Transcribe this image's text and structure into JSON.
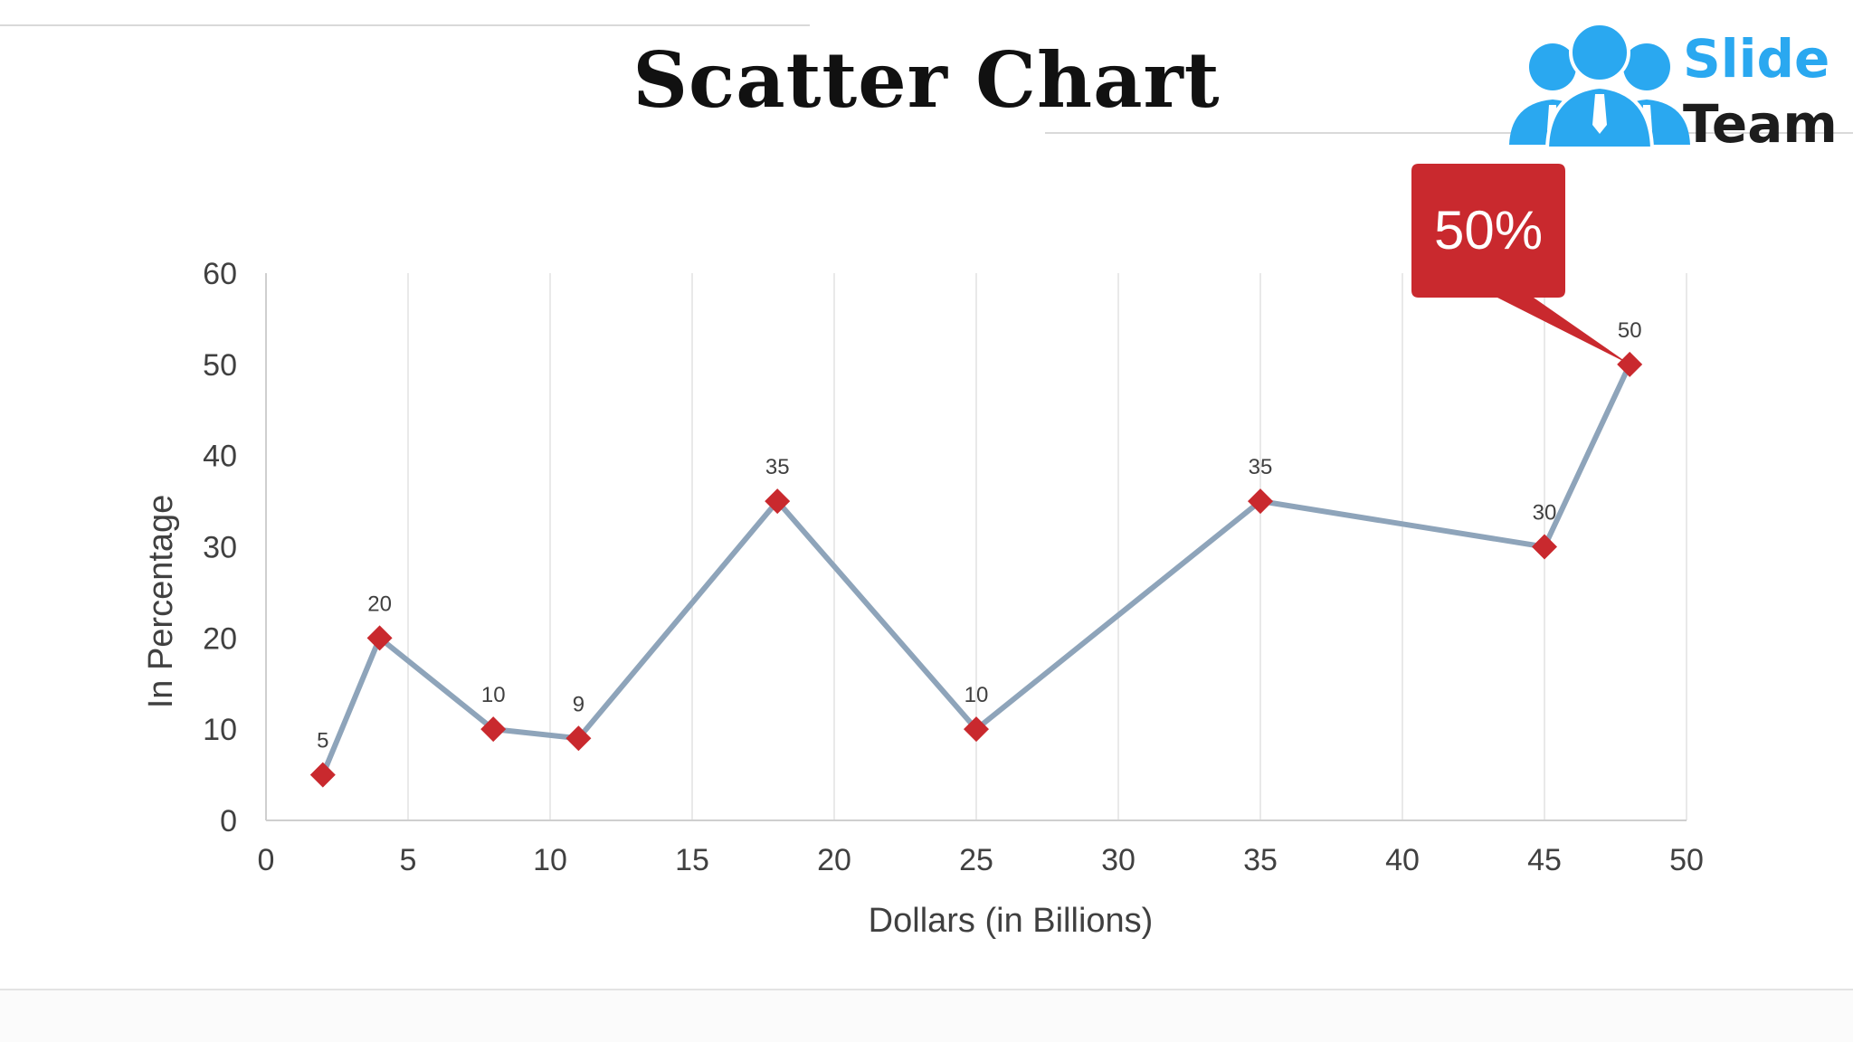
{
  "slide": {
    "title": "Scatter Chart"
  },
  "logo": {
    "line1": "Slide",
    "line2": "Team",
    "colors": {
      "blue": "#2aa8f0",
      "dark": "#1d1d1d"
    },
    "icon": "people-group-icon"
  },
  "callout": {
    "text": "50%",
    "color": "#c9292e",
    "points_to_series_index": 9
  },
  "chart_data": {
    "type": "scatter",
    "connected": true,
    "title": "",
    "xlabel": "Dollars (in Billions)",
    "ylabel": "In Percentage",
    "xlim": [
      0,
      50
    ],
    "ylim": [
      0,
      60
    ],
    "xticks": [
      0,
      5,
      10,
      15,
      20,
      25,
      30,
      35,
      40,
      45,
      50
    ],
    "yticks": [
      0,
      10,
      20,
      30,
      40,
      50,
      60
    ],
    "grid": "vertical",
    "series": [
      {
        "x": [
          2,
          4,
          8,
          11,
          18,
          25,
          35,
          45,
          48
        ],
        "y": [
          5,
          20,
          10,
          9,
          35,
          10,
          35,
          30,
          50
        ],
        "data_labels": [
          "5",
          "20",
          "10",
          "9",
          "35",
          "10",
          "35",
          "30",
          "50"
        ]
      }
    ],
    "colors": {
      "line": "#8ea4ba",
      "marker": "#c9292e",
      "grid": "#e2e2e2",
      "axis": "#cfcfcf"
    },
    "marker": "diamond"
  }
}
